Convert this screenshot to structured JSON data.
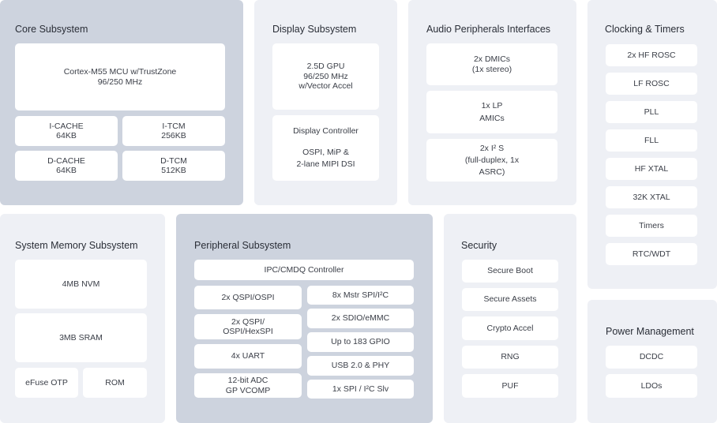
{
  "core": {
    "title": "Core Subsystem",
    "cpu": [
      "Cortex-M55 MCU w/TrustZone",
      "96/250 MHz"
    ],
    "icache": [
      "I-CACHE",
      "64KB"
    ],
    "itcm": [
      "I-TCM",
      "256KB"
    ],
    "dcache": [
      "D-CACHE",
      "64KB"
    ],
    "dtcm": [
      "D-TCM",
      "512KB"
    ]
  },
  "display": {
    "title": "Display Subsystem",
    "gpu": [
      "2.5D GPU",
      "96/250 MHz",
      "w/Vector Accel"
    ],
    "controller": [
      "Display Controller",
      "OSPI, MiP &",
      "2-lane MIPI DSI"
    ]
  },
  "audio": {
    "title": "Audio Peripherals Interfaces",
    "items": [
      [
        "2x DMICs",
        "(1x stereo)"
      ],
      [
        "1x LP",
        "AMICs"
      ],
      [
        "2x I² S",
        "(full-duplex, 1x",
        "ASRC)"
      ]
    ]
  },
  "clocking": {
    "title": "Clocking & Timers",
    "items": [
      "2x HF ROSC",
      "LF ROSC",
      "PLL",
      "FLL",
      "HF XTAL",
      "32K XTAL",
      "Timers",
      "RTC/WDT"
    ]
  },
  "memory": {
    "title": "System Memory Subsystem",
    "nvm": "4MB NVM",
    "sram": "3MB SRAM",
    "otp": "eFuse OTP",
    "rom": "ROM"
  },
  "peripheral": {
    "title": "Peripheral Subsystem",
    "ipc": "IPC/CMDQ Controller",
    "left": [
      [
        "2x QSPI/OSPI"
      ],
      [
        "2x QSPI/",
        "OSPI/HexSPI"
      ],
      [
        "4x UART"
      ],
      [
        "12-bit ADC",
        "GP VCOMP"
      ]
    ],
    "right": [
      "8x Mstr SPI/I²C",
      "2x SDIO/eMMC",
      "Up to 183 GPIO",
      "USB 2.0 & PHY",
      "1x SPI / I²C Slv"
    ]
  },
  "security": {
    "title": "Security",
    "items": [
      "Secure Boot",
      "Secure Assets",
      "Crypto Accel",
      "RNG",
      "PUF"
    ]
  },
  "power": {
    "title": "Power Management",
    "items": [
      "DCDC",
      "LDOs"
    ]
  }
}
